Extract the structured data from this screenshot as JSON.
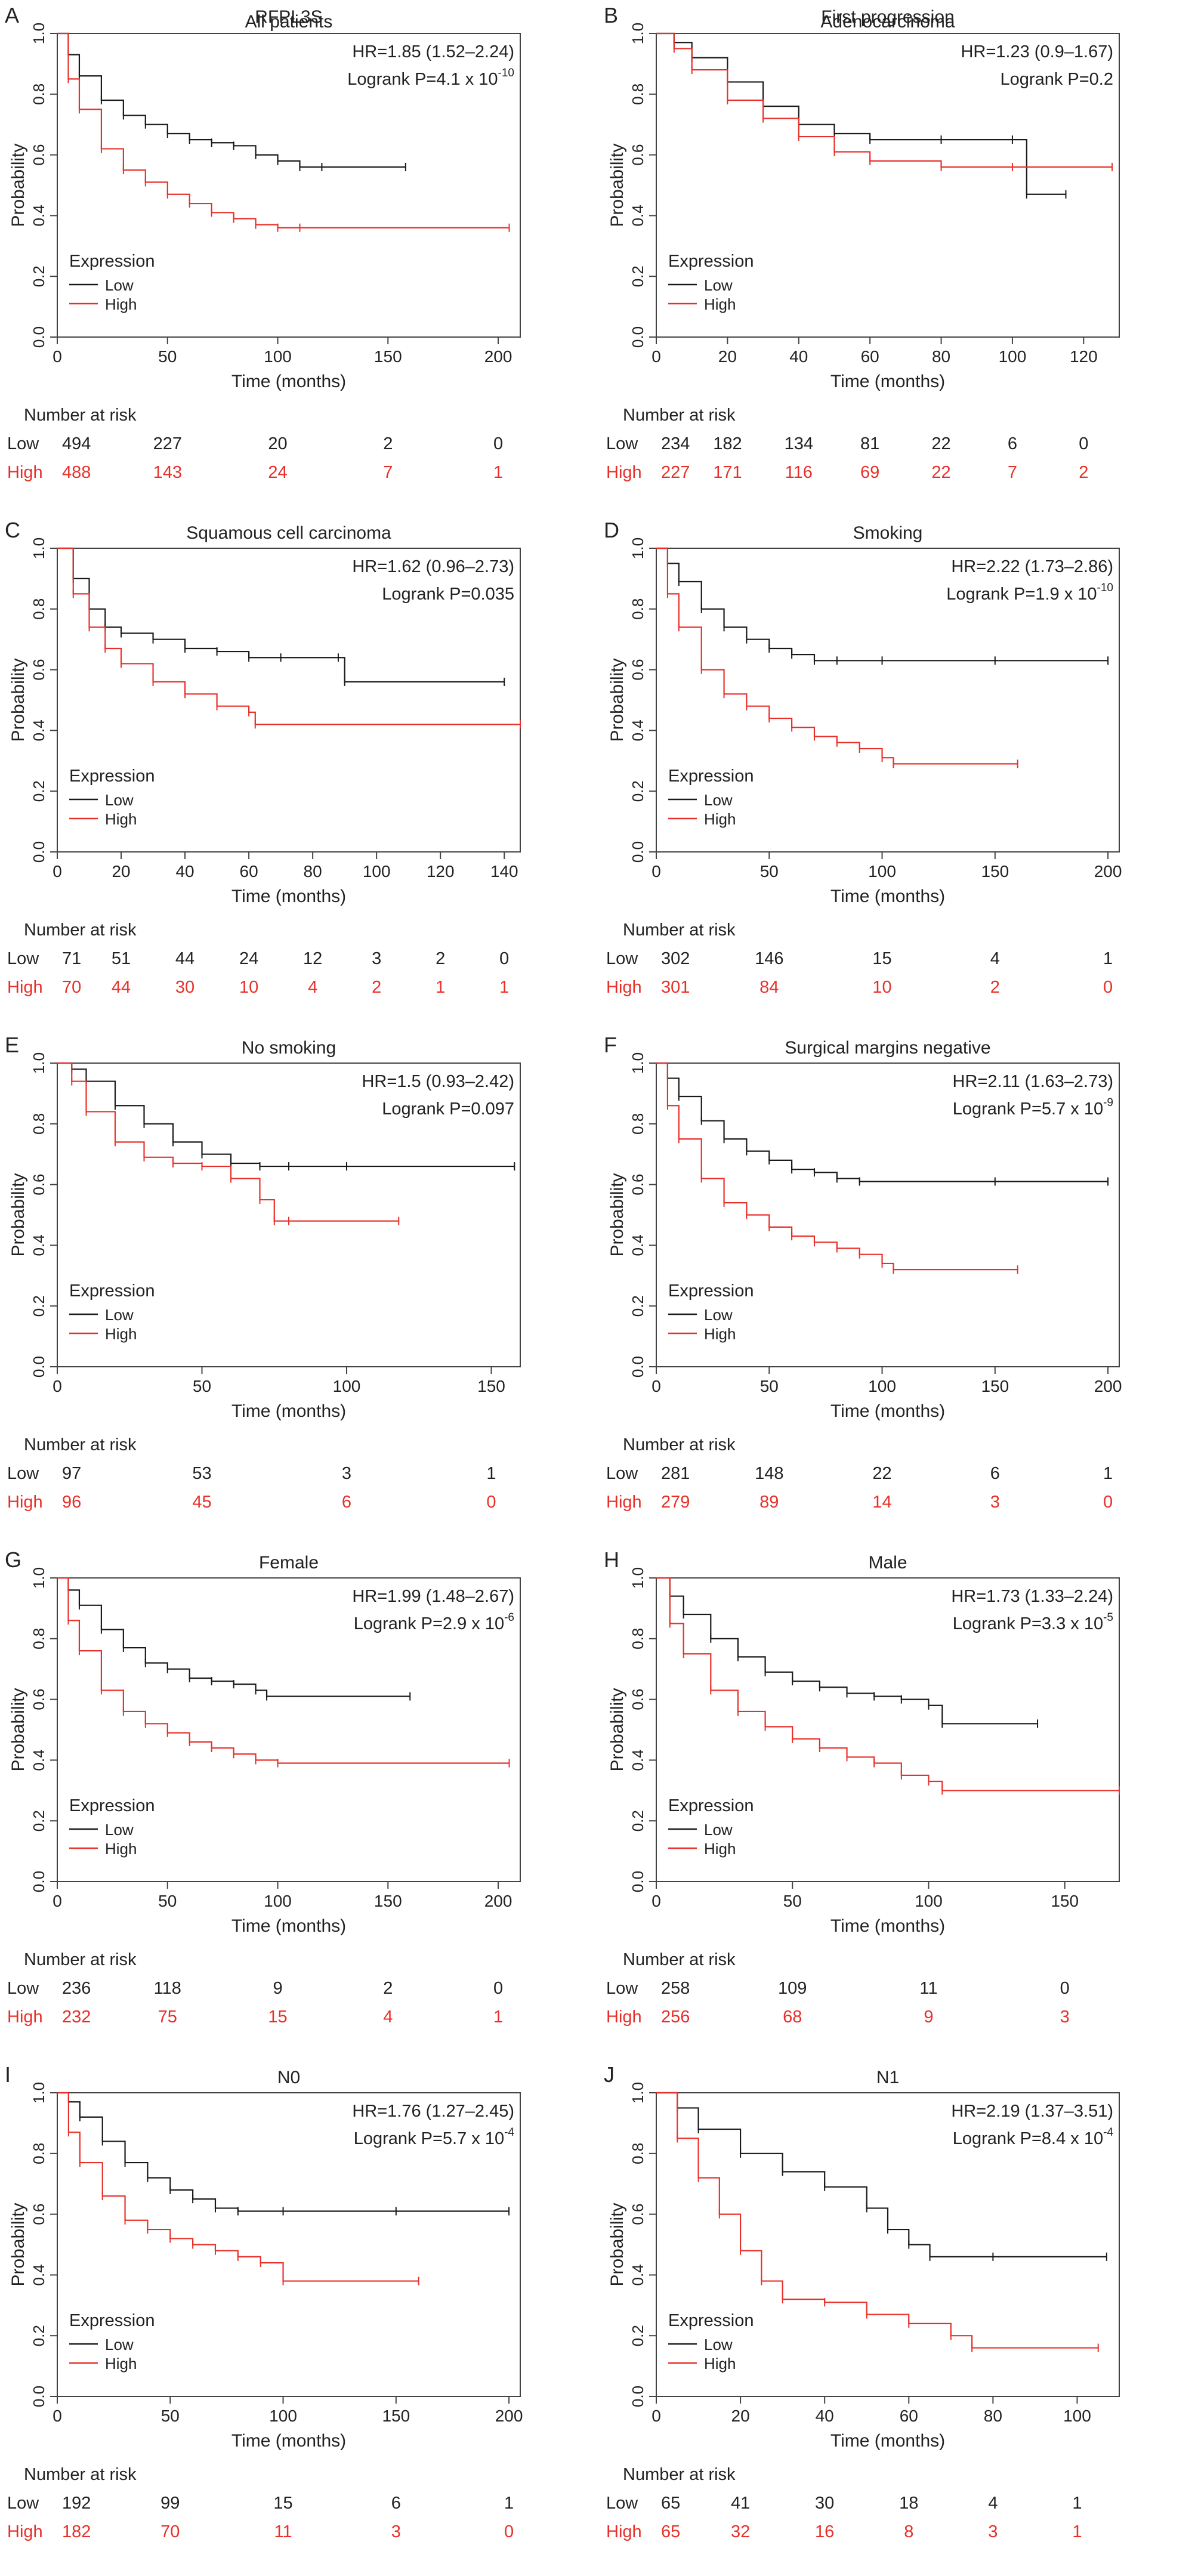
{
  "figure": {
    "gene": "RFPL3S"
  },
  "common": {
    "ylabel": "Probability",
    "xlabel": "Time (months)",
    "legend_title": "Expression",
    "legend_low": "Low",
    "legend_high": "High",
    "risk_title": "Number at risk",
    "low_label": "Low",
    "high_label": "High",
    "yticks": [
      "0.0",
      "0.2",
      "0.4",
      "0.6",
      "0.8",
      "1.0"
    ]
  },
  "colors": {
    "low": "#1a1a1a",
    "high": "#e8302a",
    "axis": "#444444"
  },
  "chart_data": [
    {
      "type": "line",
      "letter": "A",
      "title_top": "RFPL3S",
      "title": "All patients",
      "hr": "HR=1.85 (1.52–2.24)",
      "p_text": "Logrank P=4.1 x 10",
      "p_exp": "-10",
      "xlabel": "Time (months)",
      "ylabel": "Probability",
      "xlim": [
        0,
        210
      ],
      "ylim": [
        0,
        1
      ],
      "xticks": [
        0,
        50,
        100,
        150,
        200
      ],
      "series": [
        {
          "name": "Low",
          "x": [
            0,
            5,
            10,
            20,
            30,
            40,
            50,
            60,
            70,
            80,
            90,
            100,
            110,
            120,
            158
          ],
          "y": [
            1,
            0.93,
            0.86,
            0.78,
            0.73,
            0.7,
            0.67,
            0.65,
            0.64,
            0.63,
            0.6,
            0.58,
            0.56,
            0.56,
            0.56
          ]
        },
        {
          "name": "High",
          "x": [
            0,
            5,
            10,
            20,
            30,
            40,
            50,
            60,
            70,
            80,
            90,
            100,
            110,
            205
          ],
          "y": [
            1,
            0.85,
            0.75,
            0.62,
            0.55,
            0.51,
            0.47,
            0.44,
            0.41,
            0.39,
            0.37,
            0.36,
            0.36,
            0.36
          ]
        }
      ],
      "risk_times": [
        "0",
        "50",
        "100",
        "150",
        "200"
      ],
      "risk_low": [
        "494",
        "227",
        "20",
        "2",
        "0"
      ],
      "risk_high": [
        "488",
        "143",
        "24",
        "7",
        "1"
      ]
    },
    {
      "type": "line",
      "letter": "B",
      "title_top": "First progression",
      "title": "Adenocarcinoma",
      "hr": "HR=1.23 (0.9–1.67)",
      "p_text": "Logrank P=0.2",
      "p_exp": "",
      "xlabel": "Time (months)",
      "ylabel": "Probability",
      "xlim": [
        0,
        130
      ],
      "ylim": [
        0,
        1
      ],
      "xticks": [
        0,
        20,
        40,
        60,
        80,
        100,
        120
      ],
      "series": [
        {
          "name": "Low",
          "x": [
            0,
            5,
            10,
            20,
            30,
            40,
            50,
            60,
            80,
            100,
            104,
            115
          ],
          "y": [
            1,
            0.97,
            0.92,
            0.84,
            0.76,
            0.7,
            0.67,
            0.65,
            0.65,
            0.65,
            0.47,
            0.47
          ]
        },
        {
          "name": "High",
          "x": [
            0,
            5,
            10,
            20,
            30,
            40,
            50,
            60,
            80,
            100,
            128
          ],
          "y": [
            1,
            0.95,
            0.88,
            0.78,
            0.72,
            0.66,
            0.61,
            0.58,
            0.56,
            0.56,
            0.56
          ]
        }
      ],
      "risk_times": [
        "0",
        "20",
        "40",
        "60",
        "80",
        "100",
        "120"
      ],
      "risk_low": [
        "234",
        "182",
        "134",
        "81",
        "22",
        "6",
        "0"
      ],
      "risk_high": [
        "227",
        "171",
        "116",
        "69",
        "22",
        "7",
        "2"
      ]
    },
    {
      "type": "line",
      "letter": "C",
      "title_top": "",
      "title": "Squamous cell carcinoma",
      "hr": "HR=1.62 (0.96–2.73)",
      "p_text": "Logrank P=0.035",
      "p_exp": "",
      "xlabel": "Time (months)",
      "ylabel": "Probability",
      "xlim": [
        0,
        145
      ],
      "ylim": [
        0,
        1
      ],
      "xticks": [
        0,
        20,
        40,
        60,
        80,
        100,
        120,
        140
      ],
      "series": [
        {
          "name": "Low",
          "x": [
            0,
            5,
            10,
            15,
            20,
            30,
            40,
            50,
            60,
            70,
            88,
            90,
            140
          ],
          "y": [
            1,
            0.9,
            0.8,
            0.74,
            0.72,
            0.7,
            0.67,
            0.66,
            0.64,
            0.64,
            0.64,
            0.56,
            0.56
          ]
        },
        {
          "name": "High",
          "x": [
            0,
            5,
            10,
            15,
            20,
            30,
            40,
            50,
            60,
            62,
            145
          ],
          "y": [
            1,
            0.85,
            0.74,
            0.67,
            0.62,
            0.56,
            0.52,
            0.48,
            0.46,
            0.42,
            0.42
          ]
        }
      ],
      "risk_times": [
        "0",
        "20",
        "40",
        "60",
        "80",
        "100",
        "120",
        "140"
      ],
      "risk_low": [
        "71",
        "51",
        "44",
        "24",
        "12",
        "3",
        "2",
        "0"
      ],
      "risk_high": [
        "70",
        "44",
        "30",
        "10",
        "4",
        "2",
        "1",
        "1"
      ]
    },
    {
      "type": "line",
      "letter": "D",
      "title_top": "",
      "title": "Smoking",
      "hr": "HR=2.22 (1.73–2.86)",
      "p_text": "Logrank P=1.9 x 10",
      "p_exp": "-10",
      "xlabel": "Time (months)",
      "ylabel": "Probability",
      "xlim": [
        0,
        205
      ],
      "ylim": [
        0,
        1
      ],
      "xticks": [
        0,
        50,
        100,
        150,
        200
      ],
      "series": [
        {
          "name": "Low",
          "x": [
            0,
            5,
            10,
            20,
            30,
            40,
            50,
            60,
            70,
            80,
            100,
            150,
            200
          ],
          "y": [
            1,
            0.95,
            0.89,
            0.8,
            0.74,
            0.7,
            0.67,
            0.65,
            0.63,
            0.63,
            0.63,
            0.63,
            0.63
          ]
        },
        {
          "name": "High",
          "x": [
            0,
            5,
            10,
            20,
            30,
            40,
            50,
            60,
            70,
            80,
            90,
            100,
            105,
            160
          ],
          "y": [
            1,
            0.85,
            0.74,
            0.6,
            0.52,
            0.48,
            0.44,
            0.41,
            0.38,
            0.36,
            0.34,
            0.31,
            0.29,
            0.29
          ]
        }
      ],
      "risk_times": [
        "0",
        "50",
        "100",
        "150",
        "200"
      ],
      "risk_low": [
        "302",
        "146",
        "15",
        "4",
        "1"
      ],
      "risk_high": [
        "301",
        "84",
        "10",
        "2",
        "0"
      ]
    },
    {
      "type": "line",
      "letter": "E",
      "title_top": "",
      "title": "No smoking",
      "hr": "HR=1.5 (0.93–2.42)",
      "p_text": "Logrank P=0.097",
      "p_exp": "",
      "xlabel": "Time (months)",
      "ylabel": "Probability",
      "xlim": [
        0,
        160
      ],
      "ylim": [
        0,
        1
      ],
      "xticks": [
        0,
        50,
        100,
        150
      ],
      "series": [
        {
          "name": "Low",
          "x": [
            0,
            5,
            10,
            20,
            30,
            40,
            50,
            60,
            70,
            80,
            100,
            158
          ],
          "y": [
            1,
            0.98,
            0.94,
            0.86,
            0.8,
            0.74,
            0.7,
            0.67,
            0.66,
            0.66,
            0.66,
            0.66
          ]
        },
        {
          "name": "High",
          "x": [
            0,
            5,
            10,
            20,
            30,
            40,
            50,
            60,
            70,
            75,
            80,
            118
          ],
          "y": [
            1,
            0.94,
            0.84,
            0.74,
            0.69,
            0.67,
            0.66,
            0.62,
            0.55,
            0.48,
            0.48,
            0.48
          ]
        }
      ],
      "risk_times": [
        "0",
        "50",
        "100",
        "150"
      ],
      "risk_low": [
        "97",
        "53",
        "3",
        "1"
      ],
      "risk_high": [
        "96",
        "45",
        "6",
        "0"
      ]
    },
    {
      "type": "line",
      "letter": "F",
      "title_top": "",
      "title": "Surgical margins negative",
      "hr": "HR=2.11 (1.63–2.73)",
      "p_text": "Logrank P=5.7 x 10",
      "p_exp": "-9",
      "xlabel": "Time (months)",
      "ylabel": "Probability",
      "xlim": [
        0,
        205
      ],
      "ylim": [
        0,
        1
      ],
      "xticks": [
        0,
        50,
        100,
        150,
        200
      ],
      "series": [
        {
          "name": "Low",
          "x": [
            0,
            5,
            10,
            20,
            30,
            40,
            50,
            60,
            70,
            80,
            90,
            150,
            200
          ],
          "y": [
            1,
            0.95,
            0.89,
            0.81,
            0.75,
            0.71,
            0.68,
            0.65,
            0.64,
            0.62,
            0.61,
            0.61,
            0.61
          ]
        },
        {
          "name": "High",
          "x": [
            0,
            5,
            10,
            20,
            30,
            40,
            50,
            60,
            70,
            80,
            90,
            100,
            105,
            160
          ],
          "y": [
            1,
            0.86,
            0.75,
            0.62,
            0.54,
            0.5,
            0.46,
            0.43,
            0.41,
            0.39,
            0.37,
            0.34,
            0.32,
            0.32
          ]
        }
      ],
      "risk_times": [
        "0",
        "50",
        "100",
        "150",
        "200"
      ],
      "risk_low": [
        "281",
        "148",
        "22",
        "6",
        "1"
      ],
      "risk_high": [
        "279",
        "89",
        "14",
        "3",
        "0"
      ]
    },
    {
      "type": "line",
      "letter": "G",
      "title_top": "",
      "title": "Female",
      "hr": "HR=1.99 (1.48–2.67)",
      "p_text": "Logrank P=2.9 x 10",
      "p_exp": "-6",
      "xlabel": "Time (months)",
      "ylabel": "Probability",
      "xlim": [
        0,
        210
      ],
      "ylim": [
        0,
        1
      ],
      "xticks": [
        0,
        50,
        100,
        150,
        200
      ],
      "series": [
        {
          "name": "Low",
          "x": [
            0,
            5,
            10,
            20,
            30,
            40,
            50,
            60,
            70,
            80,
            90,
            95,
            160
          ],
          "y": [
            1,
            0.96,
            0.91,
            0.83,
            0.77,
            0.72,
            0.7,
            0.67,
            0.66,
            0.65,
            0.63,
            0.61,
            0.61
          ]
        },
        {
          "name": "High",
          "x": [
            0,
            5,
            10,
            20,
            30,
            40,
            50,
            60,
            70,
            80,
            90,
            100,
            205
          ],
          "y": [
            1,
            0.86,
            0.76,
            0.63,
            0.56,
            0.52,
            0.49,
            0.46,
            0.44,
            0.42,
            0.4,
            0.39,
            0.39
          ]
        }
      ],
      "risk_times": [
        "0",
        "50",
        "100",
        "150",
        "200"
      ],
      "risk_low": [
        "236",
        "118",
        "9",
        "2",
        "0"
      ],
      "risk_high": [
        "232",
        "75",
        "15",
        "4",
        "1"
      ]
    },
    {
      "type": "line",
      "letter": "H",
      "title_top": "",
      "title": "Male",
      "hr": "HR=1.73 (1.33–2.24)",
      "p_text": "Logrank P=3.3 x 10",
      "p_exp": "-5",
      "xlabel": "Time (months)",
      "ylabel": "Probability",
      "xlim": [
        0,
        170
      ],
      "ylim": [
        0,
        1
      ],
      "xticks": [
        0,
        50,
        100,
        150
      ],
      "series": [
        {
          "name": "Low",
          "x": [
            0,
            5,
            10,
            20,
            30,
            40,
            50,
            60,
            70,
            80,
            90,
            100,
            105,
            140
          ],
          "y": [
            1,
            0.94,
            0.88,
            0.8,
            0.74,
            0.69,
            0.66,
            0.64,
            0.62,
            0.61,
            0.6,
            0.58,
            0.52,
            0.52
          ]
        },
        {
          "name": "High",
          "x": [
            0,
            5,
            10,
            20,
            30,
            40,
            50,
            60,
            70,
            80,
            90,
            100,
            105,
            170
          ],
          "y": [
            1,
            0.85,
            0.75,
            0.63,
            0.56,
            0.51,
            0.47,
            0.44,
            0.41,
            0.39,
            0.35,
            0.33,
            0.3,
            0.3
          ]
        }
      ],
      "risk_times": [
        "0",
        "50",
        "100",
        "150"
      ],
      "risk_low": [
        "258",
        "109",
        "11",
        "0"
      ],
      "risk_high": [
        "256",
        "68",
        "9",
        "3"
      ]
    },
    {
      "type": "line",
      "letter": "I",
      "title_top": "",
      "title": "N0",
      "hr": "HR=1.76 (1.27–2.45)",
      "p_text": "Logrank P=5.7 x 10",
      "p_exp": "-4",
      "xlabel": "Time (months)",
      "ylabel": "Probability",
      "xlim": [
        0,
        205
      ],
      "ylim": [
        0,
        1
      ],
      "xticks": [
        0,
        50,
        100,
        150,
        200
      ],
      "series": [
        {
          "name": "Low",
          "x": [
            0,
            5,
            10,
            20,
            30,
            40,
            50,
            60,
            70,
            80,
            100,
            150,
            200
          ],
          "y": [
            1,
            0.97,
            0.92,
            0.84,
            0.77,
            0.72,
            0.68,
            0.65,
            0.62,
            0.61,
            0.61,
            0.61,
            0.61
          ]
        },
        {
          "name": "High",
          "x": [
            0,
            5,
            10,
            20,
            30,
            40,
            50,
            60,
            70,
            80,
            90,
            100,
            160
          ],
          "y": [
            1,
            0.87,
            0.77,
            0.66,
            0.58,
            0.55,
            0.52,
            0.5,
            0.48,
            0.46,
            0.44,
            0.38,
            0.38
          ]
        }
      ],
      "risk_times": [
        "0",
        "50",
        "100",
        "150",
        "200"
      ],
      "risk_low": [
        "192",
        "99",
        "15",
        "6",
        "1"
      ],
      "risk_high": [
        "182",
        "70",
        "11",
        "3",
        "0"
      ]
    },
    {
      "type": "line",
      "letter": "J",
      "title_top": "",
      "title": "N1",
      "hr": "HR=2.19 (1.37–3.51)",
      "p_text": "Logrank P=8.4 x 10",
      "p_exp": "-4",
      "xlabel": "Time (months)",
      "ylabel": "Probability",
      "xlim": [
        0,
        110
      ],
      "ylim": [
        0,
        1
      ],
      "xticks": [
        0,
        20,
        40,
        60,
        80,
        100
      ],
      "series": [
        {
          "name": "Low",
          "x": [
            0,
            5,
            10,
            20,
            30,
            40,
            50,
            55,
            60,
            65,
            80,
            107
          ],
          "y": [
            1,
            0.95,
            0.88,
            0.8,
            0.74,
            0.69,
            0.62,
            0.55,
            0.5,
            0.46,
            0.46,
            0.46
          ]
        },
        {
          "name": "High",
          "x": [
            0,
            5,
            10,
            15,
            20,
            25,
            30,
            40,
            50,
            60,
            70,
            75,
            105
          ],
          "y": [
            1,
            0.85,
            0.72,
            0.6,
            0.48,
            0.38,
            0.32,
            0.31,
            0.27,
            0.24,
            0.2,
            0.16,
            0.16
          ]
        }
      ],
      "risk_times": [
        "0",
        "20",
        "40",
        "60",
        "80",
        "100"
      ],
      "risk_low": [
        "65",
        "41",
        "30",
        "18",
        "4",
        "1"
      ],
      "risk_high": [
        "65",
        "32",
        "16",
        "8",
        "3",
        "1"
      ]
    }
  ]
}
